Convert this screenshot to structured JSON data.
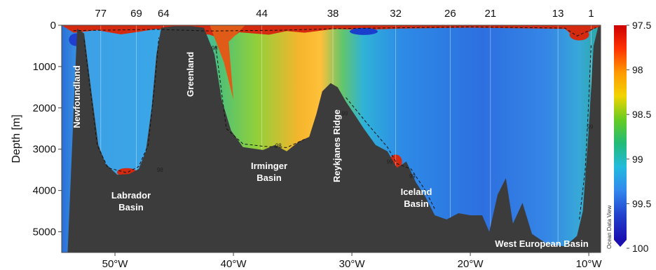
{
  "chart_data": {
    "type": "heatmap",
    "ylabel": "Depth [m]",
    "x_ticks": [
      "50°W",
      "40°W",
      "30°W",
      "20°W",
      "10°W"
    ],
    "x_tick_values": [
      -50,
      -40,
      -30,
      -20,
      -10
    ],
    "xlim": [
      -54.5,
      -9.0
    ],
    "y_ticks": [
      "0",
      "1000",
      "2000",
      "3000",
      "4000",
      "5000"
    ],
    "y_tick_values": [
      0,
      1000,
      2000,
      3000,
      4000,
      5000
    ],
    "ylim": [
      5500,
      0
    ],
    "y_inverted": true,
    "stations": [
      {
        "label": "77",
        "lon": -51.2
      },
      {
        "label": "69",
        "lon": -48.2
      },
      {
        "label": "64",
        "lon": -45.9
      },
      {
        "label": "44",
        "lon": -37.6
      },
      {
        "label": "38",
        "lon": -31.6
      },
      {
        "label": "32",
        "lon": -26.3
      },
      {
        "label": "26",
        "lon": -21.7
      },
      {
        "label": "21",
        "lon": -18.3
      },
      {
        "label": "13",
        "lon": -12.6
      },
      {
        "label": "1",
        "lon": -9.8
      }
    ],
    "colorbar": {
      "ticks": [
        "97.5",
        "98",
        "98.5",
        "99",
        "99.5",
        "100"
      ],
      "tick_values": [
        97.5,
        98,
        98.5,
        99,
        99.5,
        100
      ],
      "range": [
        97.5,
        100
      ],
      "colors_top_to_bottom": [
        "#cc0000",
        "#ff3300",
        "#ff9900",
        "#f2d400",
        "#66cc22",
        "#22bb77",
        "#22bbdd",
        "#3388ee",
        "#2244cc",
        "#1a0fb0"
      ]
    },
    "contour_labels": [
      "98",
      "99",
      "98",
      "99",
      "99",
      "98",
      "99"
    ],
    "region_labels": [
      "Newfoundland",
      "Greenland",
      "Labrador",
      "Basin",
      "Irminger",
      "Basin",
      "Reykjanes Ridge",
      "Iceland",
      "Basin",
      "West European Basin"
    ],
    "bathymetry": [
      {
        "lon": -54.5,
        "depth": 5500
      },
      {
        "lon": -54.0,
        "depth": 5500
      },
      {
        "lon": -53.2,
        "depth": 80
      },
      {
        "lon": -52.6,
        "depth": 200
      },
      {
        "lon": -52.0,
        "depth": 1600
      },
      {
        "lon": -51.4,
        "depth": 2900
      },
      {
        "lon": -50.8,
        "depth": 3350
      },
      {
        "lon": -49.8,
        "depth": 3620
      },
      {
        "lon": -48.8,
        "depth": 3600
      },
      {
        "lon": -48.0,
        "depth": 3480
      },
      {
        "lon": -47.4,
        "depth": 3050
      },
      {
        "lon": -46.9,
        "depth": 2000
      },
      {
        "lon": -46.5,
        "depth": 700
      },
      {
        "lon": -46.1,
        "depth": 60
      },
      {
        "lon": -45.0,
        "depth": 20
      },
      {
        "lon": -43.6,
        "depth": 20
      },
      {
        "lon": -42.5,
        "depth": 60
      },
      {
        "lon": -41.6,
        "depth": 700
      },
      {
        "lon": -41.0,
        "depth": 1800
      },
      {
        "lon": -40.2,
        "depth": 2550
      },
      {
        "lon": -39.2,
        "depth": 2950
      },
      {
        "lon": -37.5,
        "depth": 3020
      },
      {
        "lon": -36.5,
        "depth": 2900
      },
      {
        "lon": -35.5,
        "depth": 3050
      },
      {
        "lon": -34.5,
        "depth": 2820
      },
      {
        "lon": -33.6,
        "depth": 2700
      },
      {
        "lon": -33.0,
        "depth": 2150
      },
      {
        "lon": -32.5,
        "depth": 1600
      },
      {
        "lon": -31.8,
        "depth": 1400
      },
      {
        "lon": -31.2,
        "depth": 1500
      },
      {
        "lon": -30.5,
        "depth": 1850
      },
      {
        "lon": -29.8,
        "depth": 2150
      },
      {
        "lon": -29.0,
        "depth": 2500
      },
      {
        "lon": -28.0,
        "depth": 2900
      },
      {
        "lon": -27.0,
        "depth": 3050
      },
      {
        "lon": -26.2,
        "depth": 3450
      },
      {
        "lon": -25.4,
        "depth": 3300
      },
      {
        "lon": -24.6,
        "depth": 3800
      },
      {
        "lon": -23.8,
        "depth": 4150
      },
      {
        "lon": -23.0,
        "depth": 4600
      },
      {
        "lon": -22.0,
        "depth": 4700
      },
      {
        "lon": -21.0,
        "depth": 4550
      },
      {
        "lon": -20.0,
        "depth": 4600
      },
      {
        "lon": -19.0,
        "depth": 4600
      },
      {
        "lon": -18.4,
        "depth": 5000
      },
      {
        "lon": -17.7,
        "depth": 4100
      },
      {
        "lon": -17.0,
        "depth": 3700
      },
      {
        "lon": -16.4,
        "depth": 4800
      },
      {
        "lon": -15.6,
        "depth": 4300
      },
      {
        "lon": -14.8,
        "depth": 5050
      },
      {
        "lon": -13.5,
        "depth": 5300
      },
      {
        "lon": -12.0,
        "depth": 5350
      },
      {
        "lon": -11.0,
        "depth": 5100
      },
      {
        "lon": -10.5,
        "depth": 4500
      },
      {
        "lon": -10.0,
        "depth": 2500
      },
      {
        "lon": -9.6,
        "depth": 500
      },
      {
        "lon": -9.2,
        "depth": 30
      },
      {
        "lon": -9.0,
        "depth": 30
      },
      {
        "lon": -9.0,
        "depth": 5500
      }
    ]
  }
}
